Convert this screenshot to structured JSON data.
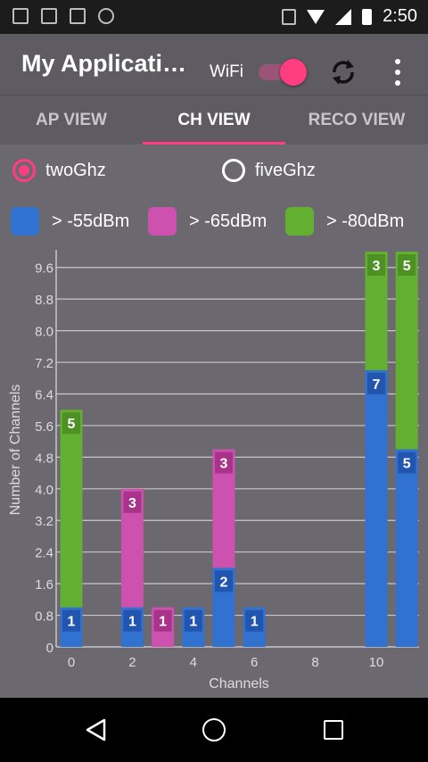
{
  "status_bar": {
    "time": "2:50"
  },
  "app_bar": {
    "title": "My Applicati…",
    "wifi_label": "WiFi",
    "wifi_enabled": true
  },
  "tabs": [
    {
      "label": "AP VIEW",
      "active": false
    },
    {
      "label": "CH VIEW",
      "active": true
    },
    {
      "label": "RECO VIEW",
      "active": false
    }
  ],
  "band": {
    "options": [
      {
        "label": "twoGhz",
        "selected": true
      },
      {
        "label": "fiveGhz",
        "selected": false
      }
    ]
  },
  "legend": [
    {
      "label": "> -55dBm",
      "color": "#3171d0"
    },
    {
      "label": "> -65dBm",
      "color": "#cd52b0"
    },
    {
      "label": "> -80dBm",
      "color": "#62af32"
    }
  ],
  "colors": {
    "accent": "#ff3d7f",
    "app_bar": "#5f5b62",
    "content_bg": "#6c6870"
  },
  "chart_data": {
    "type": "bar",
    "stacked": true,
    "xlabel": "Channels",
    "ylabel": "Number of Channels",
    "ylim": [
      0,
      10
    ],
    "yticks": [
      "0",
      "0.8",
      "1.6",
      "2.4",
      "3.2",
      "4.0",
      "4.8",
      "5.6",
      "6.4",
      "7.2",
      "8.0",
      "8.8",
      "9.6"
    ],
    "xticks": [
      "0",
      "2",
      "4",
      "6",
      "8",
      "10"
    ],
    "categories": [
      "0",
      "2",
      "3",
      "4",
      "5",
      "6",
      "10",
      "11"
    ],
    "series": [
      {
        "name": "> -55dBm",
        "values": [
          1,
          1,
          0,
          1,
          2,
          1,
          7,
          5
        ]
      },
      {
        "name": "> -65dBm",
        "values": [
          0,
          3,
          1,
          0,
          3,
          0,
          0,
          0
        ]
      },
      {
        "name": "> -80dBm",
        "values": [
          5,
          0,
          0,
          0,
          0,
          0,
          3,
          5
        ]
      }
    ],
    "grid": true
  }
}
